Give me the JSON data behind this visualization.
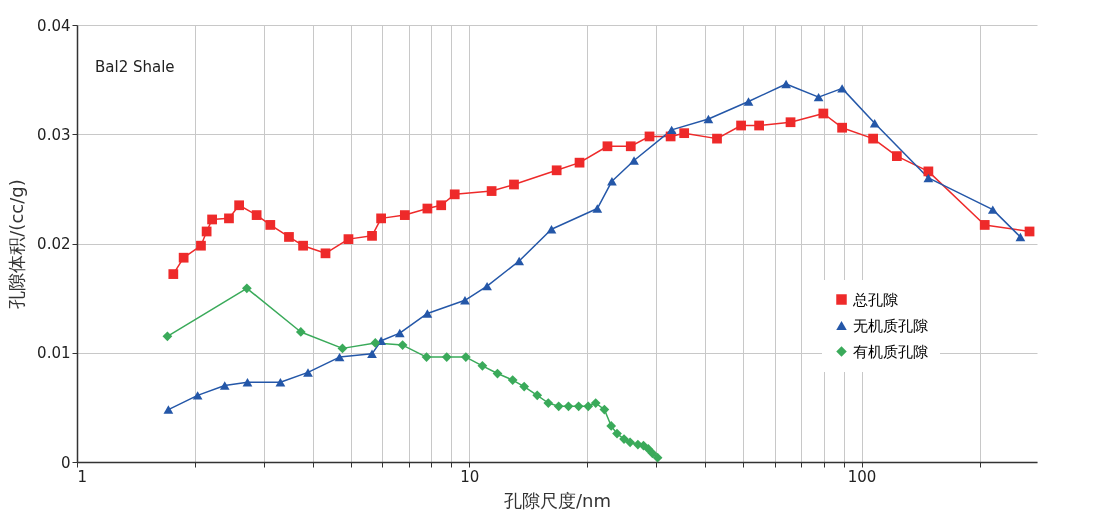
{
  "chart_data": {
    "type": "line",
    "xlabel": "孔隙尺度/nm",
    "ylabel": "孔隙体积/(cc/g)",
    "annotations": [
      "Bal2 Shale"
    ],
    "log": "x",
    "grid": true,
    "legend": "right",
    "line_style": "solid",
    "xlim": [
      1,
      280
    ],
    "xticks": [
      1,
      {
        "value": 2,
        "label": null
      },
      {
        "value": 3,
        "label": null
      },
      {
        "value": 4,
        "label": null
      },
      {
        "value": 5,
        "label": null
      },
      {
        "value": 6,
        "label": null
      },
      {
        "value": 7,
        "label": null
      },
      {
        "value": 8,
        "label": null
      },
      {
        "value": 9,
        "label": null
      },
      10,
      {
        "value": 20,
        "label": null
      },
      {
        "value": 30,
        "label": null
      },
      {
        "value": 40,
        "label": null
      },
      {
        "value": 50,
        "label": null
      },
      {
        "value": 60,
        "label": null
      },
      {
        "value": 70,
        "label": null
      },
      {
        "value": 80,
        "label": null
      },
      {
        "value": 90,
        "label": null
      },
      100,
      {
        "value": 200,
        "label": null
      }
    ],
    "ylim": [
      0,
      0.04
    ],
    "yticks": [
      0,
      0.01,
      0.02,
      0.03,
      0.04
    ],
    "series": [
      {
        "name": "总孔隙",
        "color": "#ee2a2a",
        "marker": "square",
        "x": [
          1.76,
          1.87,
          2.07,
          2.14,
          2.21,
          2.44,
          2.59,
          2.87,
          3.11,
          3.47,
          3.77,
          4.3,
          4.92,
          5.65,
          5.96,
          6.85,
          7.82,
          8.48,
          9.18,
          11.4,
          13,
          16.7,
          19.1,
          22.5,
          25.8,
          28.8,
          32.6,
          35.3,
          42.8,
          49.3,
          54.8,
          65.9,
          79.9,
          89.2,
          107,
          123,
          148,
          206,
          268
        ],
        "values": [
          0.0172,
          0.0187,
          0.0198,
          0.0211,
          0.0222,
          0.0223,
          0.0235,
          0.0226,
          0.0217,
          0.0206,
          0.0198,
          0.0191,
          0.0204,
          0.0207,
          0.0223,
          0.0226,
          0.0232,
          0.0235,
          0.0245,
          0.0248,
          0.0254,
          0.0267,
          0.0274,
          0.0289,
          0.0289,
          0.0298,
          0.0298,
          0.0301,
          0.0296,
          0.0308,
          0.0308,
          0.0311,
          0.0319,
          0.0306,
          0.0296,
          0.028,
          0.0266,
          0.0217,
          0.0211
        ]
      },
      {
        "name": "无机质孔隙",
        "color": "#2457a8",
        "marker": "triangle",
        "x": [
          1.71,
          2.03,
          2.38,
          2.72,
          3.3,
          3.88,
          4.67,
          5.65,
          5.96,
          6.65,
          7.82,
          9.75,
          11.1,
          13.4,
          16.2,
          21.2,
          23.1,
          26.3,
          32.8,
          40.7,
          51.5,
          64.2,
          77.7,
          89.2,
          108,
          148,
          216,
          254
        ],
        "values": [
          0.0048,
          0.0061,
          0.007,
          0.0073,
          0.0073,
          0.0082,
          0.0096,
          0.0099,
          0.0111,
          0.0118,
          0.0136,
          0.0148,
          0.0161,
          0.0184,
          0.0213,
          0.0232,
          0.0257,
          0.0276,
          0.0304,
          0.0314,
          0.033,
          0.0346,
          0.0334,
          0.0342,
          0.031,
          0.026,
          0.0231,
          0.0206
        ]
      },
      {
        "name": "有机质孔隙",
        "color": "#3aaa5a",
        "marker": "diamond",
        "x": [
          1.7,
          2.71,
          3.72,
          4.75,
          5.76,
          6.76,
          7.78,
          8.76,
          9.8,
          10.8,
          11.8,
          12.9,
          13.8,
          14.9,
          15.9,
          16.9,
          17.9,
          19,
          20.1,
          21,
          22.1,
          23,
          23.8,
          24.8,
          25.7,
          26.9,
          27.8,
          28.6,
          29.3,
          30.2
        ],
        "values": [
          0.0115,
          0.0159,
          0.0119,
          0.0104,
          0.0109,
          0.0107,
          0.0096,
          0.0096,
          0.0096,
          0.0088,
          0.0081,
          0.0075,
          0.0069,
          0.0061,
          0.0054,
          0.0051,
          0.0051,
          0.0051,
          0.0051,
          0.0054,
          0.0048,
          0.0033,
          0.0026,
          0.0021,
          0.0018,
          0.0016,
          0.0015,
          0.0012,
          0.0008,
          0.0004
        ]
      }
    ]
  }
}
